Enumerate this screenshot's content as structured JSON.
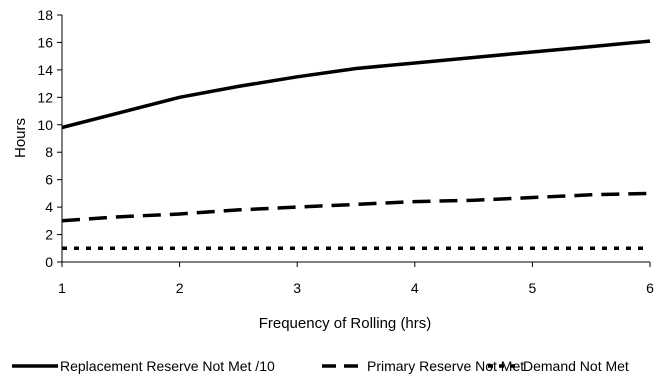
{
  "chart_data": {
    "type": "line",
    "xlabel": "Frequency of  Rolling (hrs)",
    "ylabel": "Hours",
    "xlim": [
      1,
      6
    ],
    "ylim": [
      0,
      18
    ],
    "xticks": [
      "1",
      "2",
      "3",
      "4",
      "5",
      "6"
    ],
    "yticks": [
      "0",
      "2",
      "4",
      "6",
      "8",
      "10",
      "12",
      "14",
      "16",
      "18"
    ],
    "grid": false,
    "legend_position": "bottom",
    "series": [
      {
        "name": "Replacement Reserve Not Met /10",
        "style": "solid",
        "color": "#000000",
        "x": [
          1,
          1.5,
          2,
          2.5,
          3,
          3.5,
          4,
          4.5,
          5,
          5.5,
          6
        ],
        "y": [
          9.8,
          10.9,
          12.0,
          12.8,
          13.5,
          14.1,
          14.5,
          14.9,
          15.3,
          15.7,
          16.1
        ]
      },
      {
        "name": "Primary Reserve Not Met",
        "style": "dashed",
        "color": "#000000",
        "x": [
          1,
          1.5,
          2,
          2.5,
          3,
          3.5,
          4,
          4.5,
          5,
          5.5,
          6
        ],
        "y": [
          3.0,
          3.3,
          3.5,
          3.8,
          4.0,
          4.2,
          4.4,
          4.5,
          4.7,
          4.9,
          5.0
        ]
      },
      {
        "name": "Demand Not Met",
        "style": "dotted",
        "color": "#000000",
        "x": [
          1,
          1.5,
          2,
          2.5,
          3,
          3.5,
          4,
          4.5,
          5,
          5.5,
          6
        ],
        "y": [
          1.0,
          1.0,
          1.0,
          1.0,
          1.0,
          1.0,
          1.0,
          1.0,
          1.0,
          1.0,
          1.0
        ]
      }
    ]
  }
}
